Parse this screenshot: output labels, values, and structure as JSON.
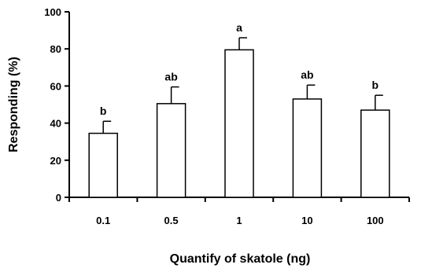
{
  "chart_data": {
    "type": "bar",
    "title": "",
    "xlabel": "Quantify of skatole (ng)",
    "ylabel": "Responding (%)",
    "categories": [
      "0.1",
      "0.5",
      "1",
      "10",
      "100"
    ],
    "values": [
      34.5,
      50.5,
      79.5,
      53,
      47
    ],
    "errors": [
      6.5,
      9,
      6.5,
      7.5,
      8
    ],
    "significance_labels": [
      "b",
      "ab",
      "a",
      "ab",
      "b"
    ],
    "ylim": [
      0,
      100
    ],
    "yticks": [
      "0",
      "20",
      "40",
      "60",
      "80",
      "100"
    ],
    "grid": false,
    "bar_fill": "#ffffff",
    "bar_stroke": "#000000"
  }
}
